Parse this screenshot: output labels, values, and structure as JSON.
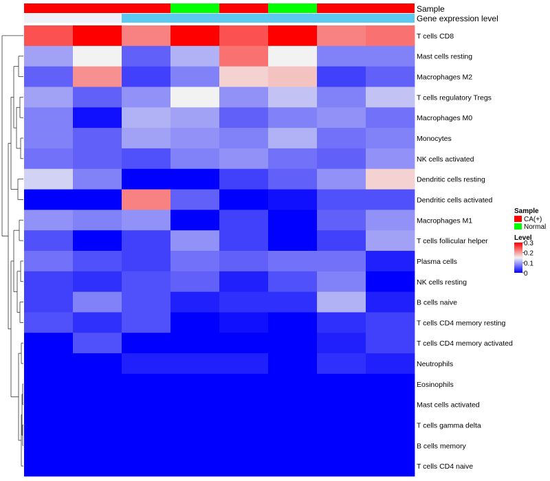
{
  "chart_data": {
    "type": "heatmap",
    "annotation_tracks": [
      "Sample",
      "Gene expression level"
    ],
    "sample_groups": [
      "CA(+)",
      "CA(+)",
      "CA(+)",
      "Normal",
      "CA(+)",
      "Normal",
      "CA(+)",
      "CA(+)"
    ],
    "expression_levels": [
      "low",
      "low",
      "high",
      "high",
      "high",
      "high",
      "high",
      "high"
    ],
    "rows": [
      "T cells CD8",
      "Mast cells resting",
      "Macrophages M2",
      "T cells regulatory  Tregs",
      "Macrophages M0",
      "Monocytes",
      "NK cells activated",
      "Dendritic cells resting",
      "Dendritic cells activated",
      "Macrophages M1",
      "T cells follicular helper",
      "Plasma cells",
      "NK cells resting",
      "B cells naive",
      "T cells CD4 memory resting",
      "T cells CD4 memory activated",
      "Neutrophils",
      "Eosinophils",
      "Mast cells activated",
      "T cells gamma delta",
      "B cells memory",
      "T cells CD4 naive"
    ],
    "values": [
      [
        0.25,
        0.3,
        0.22,
        0.3,
        0.25,
        0.3,
        0.22,
        0.23
      ],
      [
        0.1,
        0.15,
        0.06,
        0.11,
        0.23,
        0.15,
        0.08,
        0.08
      ],
      [
        0.06,
        0.21,
        0.04,
        0.08,
        0.17,
        0.18,
        0.04,
        0.06
      ],
      [
        0.1,
        0.06,
        0.09,
        0.15,
        0.09,
        0.12,
        0.08,
        0.12
      ],
      [
        0.08,
        0.01,
        0.11,
        0.1,
        0.06,
        0.08,
        0.09,
        0.07
      ],
      [
        0.08,
        0.06,
        0.1,
        0.09,
        0.08,
        0.11,
        0.07,
        0.08
      ],
      [
        0.07,
        0.06,
        0.05,
        0.08,
        0.09,
        0.07,
        0.06,
        0.09
      ],
      [
        0.13,
        0.08,
        0.0,
        0.0,
        0.04,
        0.06,
        0.09,
        0.17
      ],
      [
        0.0,
        0.0,
        0.22,
        0.06,
        0.0,
        0.01,
        0.05,
        0.05
      ],
      [
        0.09,
        0.08,
        0.09,
        0.0,
        0.04,
        0.0,
        0.06,
        0.09
      ],
      [
        0.05,
        0.0,
        0.04,
        0.09,
        0.04,
        0.0,
        0.04,
        0.1
      ],
      [
        0.07,
        0.05,
        0.04,
        0.07,
        0.06,
        0.07,
        0.07,
        0.02
      ],
      [
        0.04,
        0.03,
        0.05,
        0.06,
        0.02,
        0.05,
        0.08,
        0.0
      ],
      [
        0.04,
        0.08,
        0.05,
        0.02,
        0.03,
        0.03,
        0.11,
        0.02
      ],
      [
        0.05,
        0.03,
        0.05,
        0.0,
        0.01,
        0.0,
        0.03,
        0.04
      ],
      [
        0.0,
        0.05,
        0.0,
        0.0,
        0.0,
        0.0,
        0.02,
        0.04
      ],
      [
        0.0,
        0.0,
        0.02,
        0.02,
        0.02,
        0.0,
        0.03,
        0.02
      ],
      [
        0.0,
        0.0,
        0.0,
        0.0,
        0.0,
        0.0,
        0.0,
        0.0
      ],
      [
        0.0,
        0.0,
        0.0,
        0.0,
        0.0,
        0.0,
        0.0,
        0.0
      ],
      [
        0.0,
        0.0,
        0.0,
        0.0,
        0.0,
        0.0,
        0.0,
        0.0
      ],
      [
        0.0,
        0.0,
        0.0,
        0.0,
        0.0,
        0.0,
        0.0,
        0.0
      ],
      [
        0.0,
        0.0,
        0.0,
        0.0,
        0.0,
        0.0,
        0.0,
        0.0
      ]
    ],
    "color_scale": {
      "low_color": "#0000ff",
      "mid_color": "#f2f2f2",
      "high_color": "#ff0000",
      "domain": [
        0,
        0.15,
        0.3
      ]
    },
    "legend": {
      "sample_title": "Sample",
      "sample_entries": [
        {
          "label": "CA(+)",
          "color": "#ff0000"
        },
        {
          "label": "Normal",
          "color": "#00ff00"
        }
      ],
      "expression_colors": {
        "low": "#f0f0f8",
        "high": "#5dc8f0"
      },
      "level_title": "Level",
      "level_ticks": [
        "0.3",
        "0.2",
        "0.1",
        "0"
      ],
      "level_tick_values": [
        0.3,
        0.2,
        0.1,
        0
      ]
    }
  }
}
